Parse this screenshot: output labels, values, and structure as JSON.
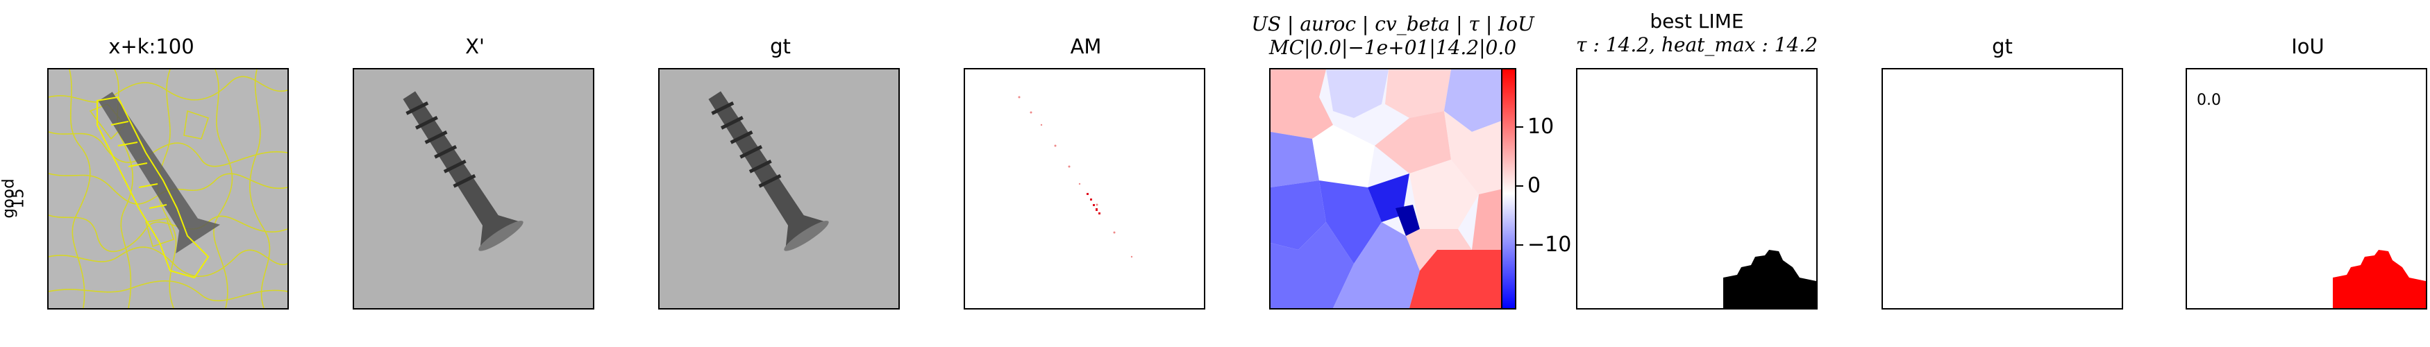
{
  "row_label": {
    "line1": "good",
    "line2": "15"
  },
  "panels": [
    {
      "title": "x+k:100"
    },
    {
      "title": "X'"
    },
    {
      "title": "gt"
    },
    {
      "title": "AM"
    },
    {
      "title_line1_parts": [
        "US",
        "auroc",
        "cv_beta",
        "τ",
        "IoU"
      ],
      "title_line2": "MC|0.0|−1e+01|14.2|0.0"
    },
    {
      "title_line1": "best LIME",
      "title_line2": "τ : 14.2, heat_max : 14.2"
    },
    {
      "title": "gt"
    },
    {
      "title": "IoU",
      "value_text": "0.0"
    }
  ],
  "colorbar": {
    "ticks": [
      10,
      0,
      -10
    ],
    "tick_labels": [
      "10",
      "0",
      "−10"
    ],
    "colors": [
      "#0000ff",
      "#ffffff",
      "#ff0000"
    ]
  },
  "colors": {
    "superpixel_boundary": "#ffff00",
    "lime_mask": "#000000",
    "iou_mask": "#ff0000"
  }
}
